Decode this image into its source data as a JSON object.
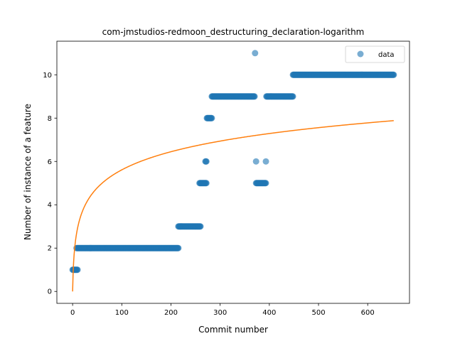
{
  "chart_data": {
    "type": "scatter",
    "title": "com-jmstudios-redmoon_destructuring_declaration-logarithm",
    "xlabel": "Commit number",
    "ylabel": "Number of instance of a feature",
    "xlim": [
      -32,
      685
    ],
    "ylim": [
      -0.55,
      11.55
    ],
    "xticks": [
      0,
      100,
      200,
      300,
      400,
      500,
      600
    ],
    "yticks": [
      0,
      2,
      4,
      6,
      8,
      10
    ],
    "grid": false,
    "legend_position": "upper right",
    "scatter_color": "#1f77b4",
    "fit_color": "#ff7f0e",
    "series": [
      {
        "name": "data",
        "kind": "scatter",
        "runs": [
          {
            "x_from": 0,
            "x_to": 10,
            "y": 1
          },
          {
            "x_from": 8,
            "x_to": 215,
            "y": 2
          },
          {
            "x_from": 215,
            "x_to": 260,
            "y": 3
          },
          {
            "x_from": 258,
            "x_to": 272,
            "y": 5
          },
          {
            "x_from": 270,
            "x_to": 272,
            "y": 6
          },
          {
            "x_from": 273,
            "x_to": 283,
            "y": 8
          },
          {
            "x_from": 283,
            "x_to": 370,
            "y": 9
          },
          {
            "x_from": 371,
            "x_to": 371,
            "y": 11
          },
          {
            "x_from": 373,
            "x_to": 373,
            "y": 6
          },
          {
            "x_from": 373,
            "x_to": 393,
            "y": 5
          },
          {
            "x_from": 393,
            "x_to": 393,
            "y": 6
          },
          {
            "x_from": 394,
            "x_to": 448,
            "y": 9
          },
          {
            "x_from": 448,
            "x_to": 653,
            "y": 10
          }
        ]
      },
      {
        "name": "",
        "kind": "line",
        "function": "log",
        "coefficient": 1.216,
        "x_range": [
          0,
          653
        ]
      }
    ]
  }
}
